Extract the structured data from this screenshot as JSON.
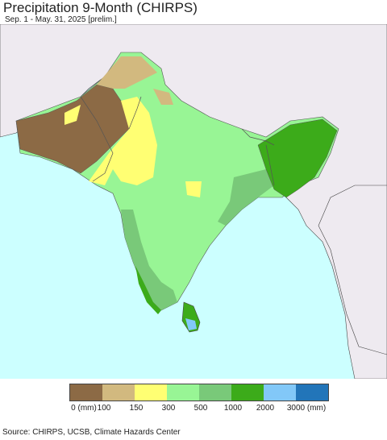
{
  "title": "Precipitation 9-Month (CHIRPS)",
  "subtitle": "Sep. 1 - May. 31, 2025 [prelim.]",
  "legend": {
    "colors": [
      "#8c6a45",
      "#d2b97f",
      "#ffff73",
      "#98f595",
      "#79c979",
      "#3cab1a",
      "#82c8f8",
      "#2275b9"
    ],
    "labels": [
      "0 (mm)",
      "100",
      "150",
      "300",
      "500",
      "1000",
      "2000",
      "3000 (mm)"
    ]
  },
  "source": "Source: CHIRPS, UCSB, Climate Hazards Center"
}
